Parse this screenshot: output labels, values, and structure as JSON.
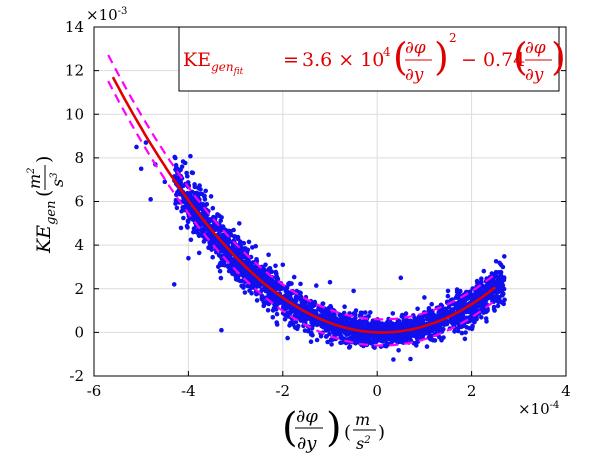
{
  "chart_data": {
    "type": "scatter",
    "title": "",
    "x_axis": {
      "range": [
        -0.0006,
        0.0004
      ],
      "ticks": [
        -0.0006,
        -0.0004,
        -0.0002,
        0,
        0.0002,
        0.0004
      ],
      "tick_labels": [
        "-6",
        "-4",
        "-2",
        "0",
        "2",
        "4"
      ],
      "multiplier": "×10",
      "multiplier_exp": "-4"
    },
    "y_axis": {
      "range": [
        -0.002,
        0.014
      ],
      "ticks": [
        -0.002,
        0,
        0.002,
        0.004,
        0.006,
        0.008,
        0.01,
        0.012,
        0.014
      ],
      "tick_labels": [
        "-2",
        "0",
        "2",
        "4",
        "6",
        "8",
        "10",
        "12",
        "14"
      ],
      "multiplier": "×10",
      "multiplier_exp": "-3"
    },
    "grid": true,
    "series": [
      {
        "kind": "scatter",
        "color": "#1010ee",
        "points": [
          [
            -0.00051,
            0.0085
          ],
          [
            -0.00049,
            0.0087
          ],
          [
            -0.0005,
            0.0075
          ],
          [
            -0.00047,
            0.0077
          ],
          [
            -0.00048,
            0.0061
          ],
          [
            -0.00045,
            0.0069
          ],
          [
            -0.00043,
            0.0022
          ],
          [
            -0.0004,
            0.0034
          ],
          [
            -0.00033,
            0.0001
          ],
          [
            -0.00035,
            0.0052
          ],
          [
            -0.0002,
            0.0031
          ],
          [
            -0.0001,
            0.0023
          ],
          [
            -5e-05,
            0.0019
          ],
          [
            5e-05,
            0.0025
          ],
          [
            0.0001,
            0.0016
          ],
          [
            0.00015,
            0.0019
          ],
          [
            0.00022,
            0.0021
          ],
          [
            0.00026,
            0.0023
          ],
          [
            0.00024,
            0.0024
          ]
        ],
        "band": {
          "x_range": [
            -0.00043,
            0.00027
          ],
          "a": 36000,
          "b": -0.74,
          "spread_sd": 0.00045,
          "count": 2600
        }
      },
      {
        "kind": "fit-line",
        "color": "#e00000",
        "a": 36000,
        "b": -0.74,
        "x_range": [
          -0.00056,
          0.00025
        ]
      },
      {
        "kind": "confidence-bound",
        "color": "#ff00ff",
        "dash": true,
        "offset": 0.0006,
        "x_range": [
          -0.00057,
          0.00025
        ]
      }
    ],
    "equation": {
      "lhs": "KE",
      "lhs_sub": "gen",
      "lhs_subsub": "fit",
      "equals": "=",
      "coef_a": "3.6 × 10",
      "coef_a_exp": "4",
      "squared": "2",
      "minus": "− 0.74",
      "frac_top": "∂φ",
      "frac_bottom": "∂y"
    },
    "xlabel": {
      "frac_top": "∂φ",
      "frac_bottom": "∂y",
      "unit_top": "m",
      "unit_bottom": "s",
      "unit_bottom_exp": "2"
    },
    "ylabel": {
      "main": "KE",
      "sub": "gen",
      "unit_top": "m",
      "unit_top_exp": "2",
      "unit_bottom": "s",
      "unit_bottom_exp": "3"
    }
  }
}
